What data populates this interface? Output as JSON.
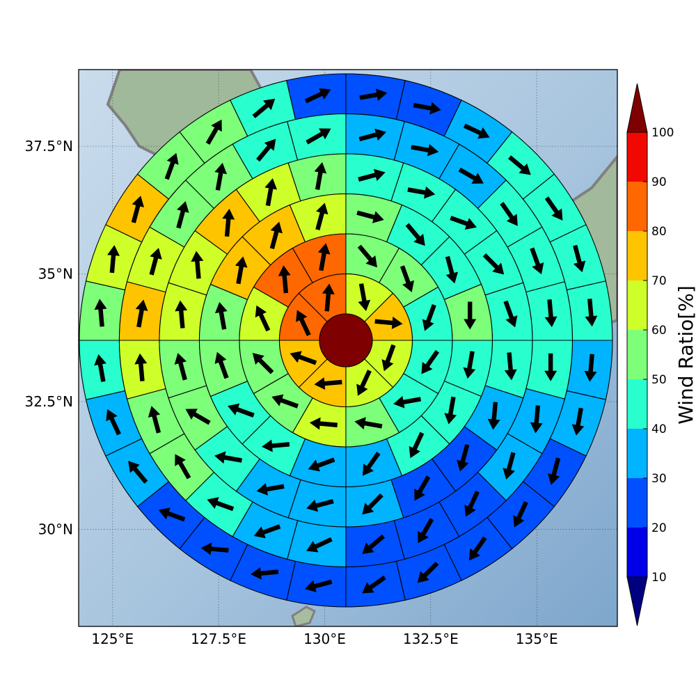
{
  "chart_data": {
    "type": "heatmap",
    "projection": "azimuthal polar grid over map",
    "map_extent": {
      "lon": [
        124.2,
        136.9
      ],
      "lat": [
        28.1,
        39.0
      ]
    },
    "center": {
      "lon": 130.5,
      "lat": 33.7
    },
    "x_ticks": [
      {
        "value": 125.0,
        "label": "125°E"
      },
      {
        "value": 127.5,
        "label": "127.5°E"
      },
      {
        "value": 130.0,
        "label": "130°E"
      },
      {
        "value": 132.5,
        "label": "132.5°E"
      },
      {
        "value": 135.0,
        "label": "135°E"
      }
    ],
    "y_ticks": [
      {
        "value": 37.5,
        "label": "37.5°N"
      },
      {
        "value": 35.0,
        "label": "35°N"
      },
      {
        "value": 32.5,
        "label": "32.5°N"
      },
      {
        "value": 30.0,
        "label": "30°N"
      }
    ],
    "grid": true,
    "center_value": 100,
    "rings": [
      {
        "ring": 1,
        "sectors": 8,
        "values": [
          65,
          70,
          65,
          60,
          75,
          75,
          80,
          80
        ],
        "arrow_dir_deg": [
          170,
          95,
          200,
          205,
          265,
          290,
          335,
          5
        ]
      },
      {
        "ring": 2,
        "sectors": 12,
        "values": [
          55,
          50,
          45,
          40,
          45,
          50,
          65,
          50,
          55,
          65,
          80,
          80
        ],
        "arrow_dir_deg": [
          140,
          160,
          200,
          215,
          260,
          280,
          275,
          290,
          315,
          335,
          355,
          10
        ]
      },
      {
        "ring": 3,
        "sectors": 16,
        "values": [
          50,
          45,
          45,
          50,
          45,
          40,
          40,
          35,
          35,
          40,
          45,
          50,
          55,
          75,
          75,
          65
        ],
        "arrow_dir_deg": [
          105,
          140,
          165,
          180,
          190,
          190,
          205,
          215,
          250,
          265,
          290,
          340,
          350,
          10,
          15,
          15
        ]
      },
      {
        "ring": 4,
        "sectors": 20,
        "values": [
          45,
          40,
          40,
          45,
          45,
          40,
          30,
          25,
          25,
          30,
          30,
          30,
          40,
          50,
          55,
          60,
          65,
          70,
          60,
          50
        ],
        "arrow_dir_deg": [
          75,
          100,
          110,
          135,
          160,
          175,
          185,
          195,
          210,
          225,
          255,
          260,
          280,
          300,
          345,
          355,
          355,
          5,
          10,
          10
        ]
      },
      {
        "ring": 5,
        "sectors": 24,
        "values": [
          35,
          35,
          35,
          40,
          40,
          45,
          40,
          35,
          30,
          25,
          25,
          25,
          30,
          30,
          40,
          50,
          55,
          65,
          75,
          65,
          55,
          55,
          40,
          45
        ],
        "arrow_dir_deg": [
          75,
          100,
          120,
          145,
          160,
          175,
          180,
          185,
          195,
          205,
          210,
          230,
          245,
          250,
          290,
          330,
          345,
          355,
          10,
          15,
          15,
          10,
          40,
          60
        ]
      },
      {
        "ring": 6,
        "sectors": 28,
        "values": [
          25,
          20,
          30,
          40,
          40,
          45,
          45,
          35,
          35,
          25,
          25,
          25,
          20,
          20,
          20,
          20,
          20,
          25,
          30,
          30,
          45,
          55,
          60,
          70,
          55,
          50,
          45,
          20
        ],
        "arrow_dir_deg": [
          80,
          100,
          115,
          130,
          145,
          165,
          175,
          185,
          190,
          195,
          205,
          215,
          225,
          235,
          255,
          265,
          275,
          290,
          320,
          335,
          350,
          355,
          5,
          15,
          20,
          30,
          50,
          65
        ]
      }
    ],
    "colorbar": {
      "title": "Wind Ratio[%]",
      "bounds": [
        10,
        20,
        30,
        40,
        50,
        60,
        70,
        80,
        90,
        100
      ],
      "tick_labels": [
        "10",
        "20",
        "30",
        "40",
        "50",
        "60",
        "70",
        "80",
        "90",
        "100"
      ],
      "colors": [
        "#00007f",
        "#0000e8",
        "#0050ff",
        "#00b4ff",
        "#29ffce",
        "#7dff7a",
        "#ceff29",
        "#ffc400",
        "#ff6800",
        "#f10800",
        "#7f0000"
      ],
      "extend": "both"
    }
  }
}
